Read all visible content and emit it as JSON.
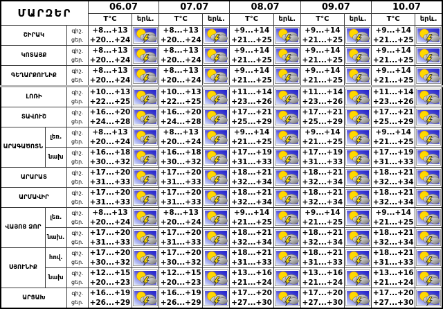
{
  "header": {
    "regions_label": "ՄԱՐԶԵՐ",
    "dates": [
      "06.07",
      "07.07",
      "08.07",
      "09.07",
      "10.07"
    ],
    "temp_label": "T°C",
    "phenomenon_label": "երև.",
    "night_label": "գիշ.",
    "day_label": "ցեր."
  },
  "icons": {
    "weather_cell": "sun-cloud-lightning-icon",
    "note": "every phenomenon cell shows the same sun-behind-cloud-with-lightning icon"
  },
  "colors": {
    "sky_dark": "#2020c8",
    "sky_light": "#d8e2fa",
    "sun": "#ffd800",
    "cloud_light": "#e8e8e8",
    "cloud_dark": "#6f6f6f",
    "lightning": "#ffe000",
    "table_border": "#000000",
    "separator_line": "#b3b3b3"
  },
  "groups": [
    {
      "region": "ՇԻՐԱԿ",
      "rows": [
        {
          "sub": "",
          "temps": [
            {
              "night": "+8...+13",
              "day": "+20...+24"
            },
            {
              "night": "+8...+13",
              "day": "+20...+24"
            },
            {
              "night": "+9...+14",
              "day": "+21...+25"
            },
            {
              "night": "+9...+14",
              "day": "+21...+25"
            },
            {
              "night": "+9...+14",
              "day": "+21...+25"
            }
          ]
        }
      ]
    },
    {
      "region": "ԿՈՏԱՅՔ",
      "rows": [
        {
          "sub": "",
          "temps": [
            {
              "night": "+8...+13",
              "day": "+20...+24"
            },
            {
              "night": "+8...+13",
              "day": "+20...+24"
            },
            {
              "night": "+9...+14",
              "day": "+21...+25"
            },
            {
              "night": "+9...+14",
              "day": "+21...+25"
            },
            {
              "night": "+9...+14",
              "day": "+21...+25"
            }
          ]
        }
      ]
    },
    {
      "region": "ԳԵՂԱՐՔՈՒՆԻՔ",
      "rows": [
        {
          "sub": "",
          "temps": [
            {
              "night": "+8...+13",
              "day": "+20...+24"
            },
            {
              "night": "+8...+13",
              "day": "+20...+24"
            },
            {
              "night": "+9...+14",
              "day": "+21...+25"
            },
            {
              "night": "+9...+14",
              "day": "+21...+25"
            },
            {
              "night": "+9...+14",
              "day": "+21...+25"
            }
          ]
        }
      ]
    },
    {
      "region": "ԼՈՌԻ",
      "rows": [
        {
          "sub": "",
          "temps": [
            {
              "night": "+10...+13",
              "day": "+22...+25"
            },
            {
              "night": "+10...+13",
              "day": "+22...+25"
            },
            {
              "night": "+11...+14",
              "day": "+23...+26"
            },
            {
              "night": "+11...+14",
              "day": "+23...+26"
            },
            {
              "night": "+11...+14",
              "day": "+23...+26"
            }
          ]
        }
      ]
    },
    {
      "region": "ՏԱՎՈՒՇ",
      "rows": [
        {
          "sub": "",
          "temps": [
            {
              "night": "+16...+20",
              "day": "+24...+28"
            },
            {
              "night": "+16...+20",
              "day": "+24...+28"
            },
            {
              "night": "+17...+21",
              "day": "+25...+29"
            },
            {
              "night": "+17...+21",
              "day": "+25...+29"
            },
            {
              "night": "+17...+21",
              "day": "+25...+29"
            }
          ]
        }
      ]
    },
    {
      "region": "ԱՐԱԳԱԾՈՏՆ",
      "rows": [
        {
          "sub": "լեռ.",
          "temps": [
            {
              "night": "+8...+13",
              "day": "+20...+24"
            },
            {
              "night": "+8...+13",
              "day": "+20...+24"
            },
            {
              "night": "+9...+14",
              "day": "+21...+25"
            },
            {
              "night": "+9...+14",
              "day": "+21...+25"
            },
            {
              "night": "+9...+14",
              "day": "+21...+25"
            }
          ]
        },
        {
          "sub": "նախ",
          "temps": [
            {
              "night": "+16...+18",
              "day": "+30...+32"
            },
            {
              "night": "+16...+18",
              "day": "+30...+32"
            },
            {
              "night": "+17...+19",
              "day": "+31...+33"
            },
            {
              "night": "+17...+19",
              "day": "+31...+33"
            },
            {
              "night": "+17...+19",
              "day": "+31...+33"
            }
          ]
        }
      ]
    },
    {
      "region": "ԱՐԱՐԱՏ",
      "rows": [
        {
          "sub": "",
          "temps": [
            {
              "night": "+17...+20",
              "day": "+31...+33"
            },
            {
              "night": "+17...+20",
              "day": "+31...+33"
            },
            {
              "night": "+18...+21",
              "day": "+32...+34"
            },
            {
              "night": "+18...+21",
              "day": "+32...+34"
            },
            {
              "night": "+18...+21",
              "day": "+32...+34"
            }
          ]
        }
      ]
    },
    {
      "region": "ԱՐՄԱՎԻՐ",
      "rows": [
        {
          "sub": "",
          "temps": [
            {
              "night": "+17...+20",
              "day": "+31...+33"
            },
            {
              "night": "+17...+20",
              "day": "+31...+33"
            },
            {
              "night": "+18...+21",
              "day": "+32...+34"
            },
            {
              "night": "+18...+21",
              "day": "+32...+34"
            },
            {
              "night": "+18...+21",
              "day": "+32...+34"
            }
          ]
        }
      ]
    },
    {
      "region": "ՎԱՅՈՑ ՁՈՐ",
      "rows": [
        {
          "sub": "լեռ.",
          "temps": [
            {
              "night": "+8...+13",
              "day": "+20...+24"
            },
            {
              "night": "+8...+13",
              "day": "+20...+24"
            },
            {
              "night": "+9...+14",
              "day": "+21...+25"
            },
            {
              "night": "+9...+14",
              "day": "+21...+25"
            },
            {
              "night": "+9...+14",
              "day": "+21...+25"
            }
          ]
        },
        {
          "sub": "նախ.",
          "temps": [
            {
              "night": "+17...+20",
              "day": "+31...+33"
            },
            {
              "night": "+17...+20",
              "day": "+31...+33"
            },
            {
              "night": "+18...+21",
              "day": "+32...+34"
            },
            {
              "night": "+18...+21",
              "day": "+32...+34"
            },
            {
              "night": "+18...+21",
              "day": "+32...+34"
            }
          ]
        }
      ]
    },
    {
      "region": "ՍՅՈՒՆԻՔ",
      "rows": [
        {
          "sub": "հով.",
          "temps": [
            {
              "night": "+17...+20",
              "day": "+30...+32"
            },
            {
              "night": "+17...+20",
              "day": "+30...+32"
            },
            {
              "night": "+18...+21",
              "day": "+31...+33"
            },
            {
              "night": "+18...+21",
              "day": "+31...+33"
            },
            {
              "night": "+18...+21",
              "day": "+31...+33"
            }
          ]
        },
        {
          "sub": "նախ",
          "temps": [
            {
              "night": "+12...+15",
              "day": "+20...+23"
            },
            {
              "night": "+12...+15",
              "day": "+20...+23"
            },
            {
              "night": "+13...+16",
              "day": "+21...+24"
            },
            {
              "night": "+13...+16",
              "day": "+21...+24"
            },
            {
              "night": "+13...+16",
              "day": "+21...+24"
            }
          ]
        }
      ]
    },
    {
      "region": "ԱՐՑԱԽ",
      "rows": [
        {
          "sub": "",
          "temps": [
            {
              "night": "+16...+19",
              "day": "+26...+29"
            },
            {
              "night": "+16...+19",
              "day": "+26...+29"
            },
            {
              "night": "+17...+20",
              "day": "+27...+30"
            },
            {
              "night": "+17...+20",
              "day": "+27...+30"
            },
            {
              "night": "+17...+20",
              "day": "+27...+30"
            }
          ]
        }
      ]
    }
  ]
}
